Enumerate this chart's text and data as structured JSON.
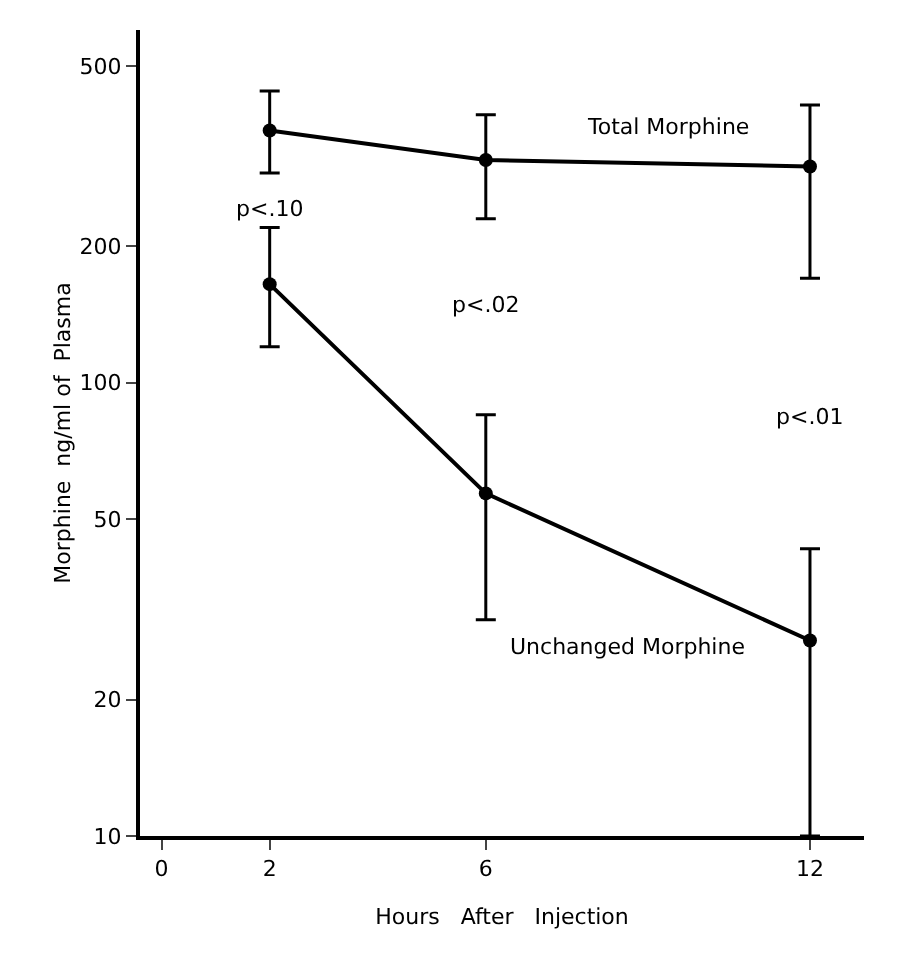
{
  "chart_data": {
    "type": "line",
    "xlabel": "Hours   After   Injection",
    "ylabel": "Morphine  ng/ml of  Plasma",
    "x": [
      2,
      6,
      12
    ],
    "xlim": [
      -0.4,
      13
    ],
    "xticks": [
      0,
      2,
      6,
      12
    ],
    "log": true,
    "ylim": [
      10,
      600
    ],
    "yticks": [
      10,
      20,
      50,
      100,
      200,
      500
    ],
    "grid": false,
    "legend": false,
    "marker": "circle",
    "line_style": "solid",
    "series": [
      {
        "name": "Total Morphine",
        "color": "#000000",
        "values": [
          360,
          310,
          300
        ],
        "errors": [
          [
            290,
            440
          ],
          [
            230,
            390
          ],
          [
            170,
            410
          ]
        ]
      },
      {
        "name": "Unchanged Morphine",
        "color": "#000000",
        "values": [
          165,
          57,
          27
        ],
        "errors": [
          [
            120,
            220
          ],
          [
            30,
            85
          ],
          [
            10,
            43
          ]
        ]
      }
    ],
    "annotations": [
      "p<.10",
      "p<.02",
      "p<.01"
    ]
  }
}
